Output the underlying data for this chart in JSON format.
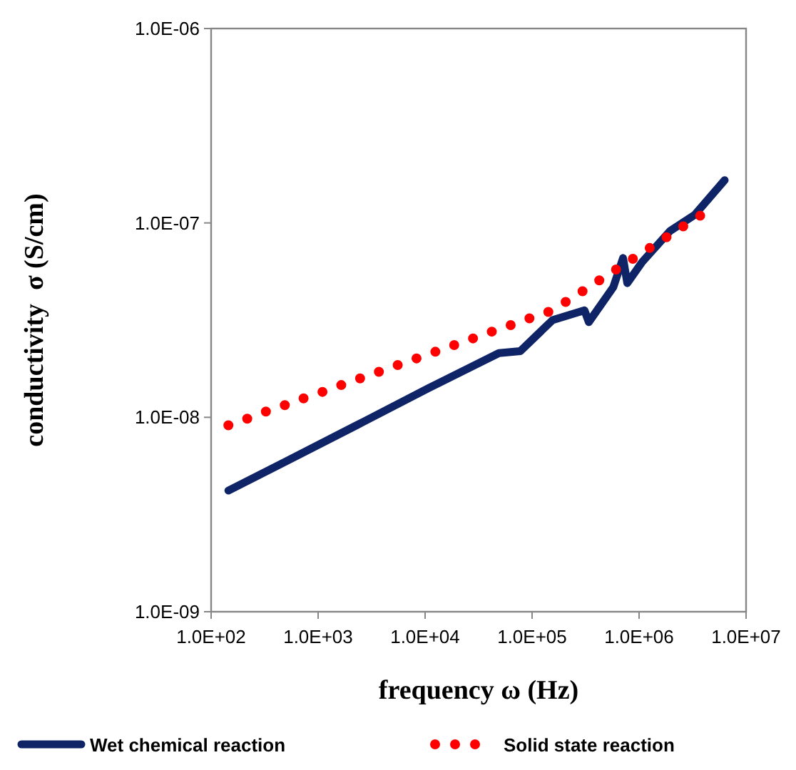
{
  "chart_data": {
    "type": "line",
    "xlabel": "frequency ω (Hz)",
    "ylabel": "conductivity  σ (S/cm)",
    "log": "xy",
    "grid": false,
    "legend": "bottom",
    "xlim": [
      100,
      10000000
    ],
    "ylim": [
      1e-09,
      1e-06
    ],
    "xticks": [
      {
        "value": 100,
        "label": "1.0E+02"
      },
      {
        "value": 1000,
        "label": "1.0E+03"
      },
      {
        "value": 10000,
        "label": "1.0E+04"
      },
      {
        "value": 100000,
        "label": "1.0E+05"
      },
      {
        "value": 1000000,
        "label": "1.0E+06"
      },
      {
        "value": 10000000,
        "label": "1.0E+07"
      }
    ],
    "yticks": [
      {
        "value": 1e-09,
        "label": "1.0E-09"
      },
      {
        "value": 1e-08,
        "label": "1.0E-08"
      },
      {
        "value": 1e-07,
        "label": "1.0E-07"
      },
      {
        "value": 1e-06,
        "label": "1.0E-06"
      }
    ],
    "series": [
      {
        "name": "Wet chemical reaction",
        "color": "#0f2466",
        "line_style": "solid",
        "x": [
          145,
          490,
          2290,
          10700,
          49000,
          77600,
          155000,
          309000,
          339000,
          575000,
          708000,
          776000,
          1070000,
          1950000,
          3310000,
          6310000
        ],
        "values": [
          4.2e-09,
          5.9e-09,
          9.1e-09,
          1.41e-08,
          2.14e-08,
          2.19e-08,
          3.16e-08,
          3.55e-08,
          3.09e-08,
          4.68e-08,
          6.6e-08,
          4.9e-08,
          6.3e-08,
          9.1e-08,
          1.1e-07,
          1.66e-07
        ]
      },
      {
        "name": "Solid state reaction",
        "color": "#ff0000",
        "line_style": "dotted",
        "x": [
          145,
          224,
          339,
          525,
          813,
          1230,
          1905,
          2950,
          4470,
          6920,
          10700,
          16200,
          25100,
          38900,
          58900,
          91200,
          141000,
          214000,
          331000,
          513000,
          776000,
          1200000,
          1860000,
          2820000,
          4370000
        ],
        "values": [
          9.1e-09,
          9.9e-09,
          1.08e-08,
          1.17e-08,
          1.28e-08,
          1.38e-08,
          1.51e-08,
          1.64e-08,
          1.78e-08,
          1.94e-08,
          2.11e-08,
          2.29e-08,
          2.49e-08,
          2.72e-08,
          2.94e-08,
          3.21e-08,
          3.48e-08,
          3.97e-08,
          4.63e-08,
          5.42e-08,
          6.27e-08,
          7.31e-08,
          8.53e-08,
          9.9e-08,
          1.15e-07
        ]
      }
    ]
  }
}
